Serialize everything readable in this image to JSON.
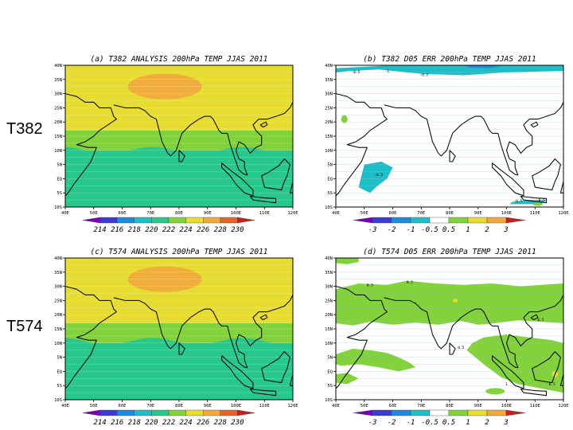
{
  "row_labels": [
    "T382",
    "T574"
  ],
  "chart_data": [
    {
      "type": "heatmap",
      "panel": "(a)",
      "title": "(a)  T382 ANALYSIS 200hPa TEMP JJAS 2011",
      "xticks": [
        "40E",
        "50E",
        "60E",
        "70E",
        "80E",
        "90E",
        "100E",
        "110E",
        "120E"
      ],
      "yticks": [
        "40N",
        "35N",
        "30N",
        "25N",
        "20N",
        "15N",
        "10N",
        "5N",
        "EQ",
        "5S",
        "10S"
      ],
      "xlim": [
        40,
        120
      ],
      "ylim": [
        -10,
        40
      ],
      "colorbar": [
        "214",
        "216",
        "218",
        "220",
        "222",
        "224",
        "226",
        "228",
        "230"
      ],
      "colorbar_colors": [
        "#7a00b4",
        "#3c3cd2",
        "#1e8cdc",
        "#1ebec8",
        "#28c88c",
        "#82d23c",
        "#e6dc32",
        "#f0aa3c",
        "#e66428",
        "#c81e1e"
      ],
      "field_bands": [
        {
          "lat_from": -10,
          "lat_to": 10,
          "value": "223"
        },
        {
          "lat_from": 10,
          "lat_to": 17,
          "value": "224-225"
        },
        {
          "lat_from": 17,
          "lat_to": 40,
          "value": "226-227"
        }
      ],
      "max_region": {
        "lon": [
          62,
          88
        ],
        "lat": [
          28,
          37
        ],
        "value": "228-229"
      }
    },
    {
      "type": "heatmap",
      "panel": "(b)",
      "title": "(b)  T382 D05 ERR 200hPa TEMP JJAS 2011",
      "xticks": [
        "40E",
        "50E",
        "60E",
        "70E",
        "80E",
        "90E",
        "100E",
        "110E",
        "120E"
      ],
      "yticks": [
        "40N",
        "35N",
        "30N",
        "25N",
        "20N",
        "15N",
        "10N",
        "5N",
        "EQ",
        "5S",
        "10S"
      ],
      "xlim": [
        40,
        120
      ],
      "ylim": [
        -10,
        40
      ],
      "colorbar": [
        "-3",
        "-2",
        "-1",
        "-0.5",
        "0.5",
        "1",
        "2",
        "3"
      ],
      "colorbar_colors": [
        "#7a00b4",
        "#3c3cd2",
        "#1e8cdc",
        "#1ebec8",
        "#ffffff",
        "#82d23c",
        "#e6dc32",
        "#f0aa3c",
        "#c81e1e"
      ],
      "contour_labels": [
        "-0.5",
        "-1",
        "-0.5",
        "-0.5",
        "-0.5",
        "-0.5"
      ]
    },
    {
      "type": "heatmap",
      "panel": "(c)",
      "title": "(c)  T574 ANALYSIS 200hPa TEMP JJAS 2011",
      "xticks": [
        "40E",
        "50E",
        "60E",
        "70E",
        "80E",
        "90E",
        "100E",
        "110E",
        "120E"
      ],
      "yticks": [
        "40N",
        "35N",
        "30N",
        "25N",
        "20N",
        "15N",
        "10N",
        "5N",
        "EQ",
        "5S",
        "10S"
      ],
      "xlim": [
        40,
        120
      ],
      "ylim": [
        -10,
        40
      ],
      "colorbar": [
        "214",
        "216",
        "218",
        "220",
        "222",
        "224",
        "226",
        "228",
        "230"
      ],
      "colorbar_colors": [
        "#7a00b4",
        "#3c3cd2",
        "#1e8cdc",
        "#1ebec8",
        "#28c88c",
        "#82d23c",
        "#e6dc32",
        "#f0aa3c",
        "#e66428",
        "#c81e1e"
      ],
      "field_bands": [
        {
          "lat_from": -10,
          "lat_to": 10,
          "value": "223"
        },
        {
          "lat_from": 10,
          "lat_to": 17,
          "value": "224-225"
        },
        {
          "lat_from": 17,
          "lat_to": 40,
          "value": "226-227"
        }
      ],
      "max_region": {
        "lon": [
          62,
          88
        ],
        "lat": [
          28,
          37
        ],
        "value": "228-229"
      }
    },
    {
      "type": "heatmap",
      "panel": "(d)",
      "title": "(d)  T574 D05 ERR 200hPa TEMP JJAS 2011",
      "xticks": [
        "40E",
        "50E",
        "60E",
        "70E",
        "80E",
        "90E",
        "100E",
        "110E",
        "120E"
      ],
      "yticks": [
        "40N",
        "35N",
        "30N",
        "25N",
        "20N",
        "15N",
        "10N",
        "5N",
        "EQ",
        "5S",
        "10S"
      ],
      "xlim": [
        40,
        120
      ],
      "ylim": [
        -10,
        40
      ],
      "colorbar": [
        "-3",
        "-2",
        "-1",
        "-0.5",
        "0.5",
        "1",
        "2",
        "3"
      ],
      "colorbar_colors": [
        "#7a00b4",
        "#3c3cd2",
        "#1e8cdc",
        "#1ebec8",
        "#ffffff",
        "#82d23c",
        "#e6dc32",
        "#f0aa3c",
        "#c81e1e"
      ],
      "contour_labels": [
        "0.5",
        "0.5",
        "0.5",
        "0.5",
        "0.5",
        "1"
      ]
    }
  ]
}
